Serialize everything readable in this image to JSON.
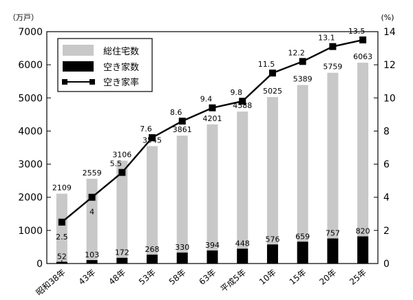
{
  "chart_data": {
    "type": "bar",
    "categories": [
      "昭和38年",
      "43年",
      "48年",
      "53年",
      "58年",
      "63年",
      "平成5年",
      "10年",
      "15年",
      "20年",
      "25年"
    ],
    "series": [
      {
        "name": "総住宅数",
        "type": "bar",
        "axis": "left",
        "color": "#c8c8c8",
        "values": [
          2109,
          2559,
          3106,
          3545,
          3861,
          4201,
          4588,
          5025,
          5389,
          5759,
          6063
        ]
      },
      {
        "name": "空き家数",
        "type": "bar",
        "axis": "left",
        "color": "#000000",
        "values": [
          52,
          103,
          172,
          268,
          330,
          394,
          448,
          576,
          659,
          757,
          820
        ]
      },
      {
        "name": "空き家率",
        "type": "line",
        "axis": "right",
        "color": "#000000",
        "values": [
          2.5,
          4.0,
          5.5,
          7.6,
          8.6,
          9.4,
          9.8,
          11.5,
          12.2,
          13.1,
          13.5
        ]
      }
    ],
    "yleft": {
      "unit": "（万戸）",
      "ylim": [
        0,
        7000
      ],
      "ticks": [
        "0",
        "1000",
        "2000",
        "3000",
        "4000",
        "5000",
        "6000",
        "7000"
      ]
    },
    "yright": {
      "unit": "(%)",
      "ylim": [
        0,
        14
      ],
      "ticks": [
        "0",
        "2",
        "4",
        "6",
        "8",
        "10",
        "12",
        "14"
      ]
    },
    "legend": {
      "placement": "top-left",
      "items": [
        "総住宅数",
        "空き家数",
        "空き家率"
      ]
    },
    "grid": false
  }
}
